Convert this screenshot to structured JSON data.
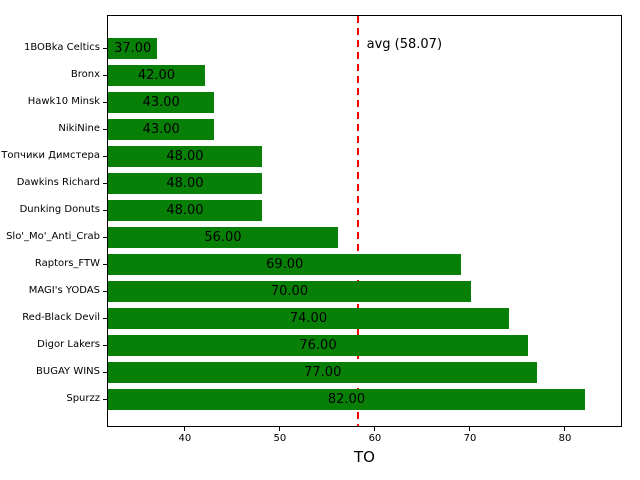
{
  "chart_data": {
    "type": "bar",
    "orientation": "horizontal",
    "title": "",
    "xlabel": "TO",
    "ylabel": "",
    "grid": false,
    "legend": null,
    "categories": [
      "1BOBka Celtics",
      "Bronx",
      "Hawk10 Minsk",
      "NikiNine",
      "Топчики Димстера",
      "Dawkins Richard",
      "Dunking Donuts",
      "Slo'_Mo'_Anti_Crab",
      "Raptors_FTW",
      "MAGI's YODAS",
      "Red-Black Devil",
      "Digor Lakers",
      "BUGAY WINS",
      "Spurzz"
    ],
    "values": [
      37,
      42,
      43,
      43,
      48,
      48,
      48,
      56,
      69,
      70,
      74,
      76,
      77,
      82
    ],
    "value_labels": [
      "37.00",
      "42.00",
      "43.00",
      "43.00",
      "48.00",
      "48.00",
      "48.00",
      "56.00",
      "69.00",
      "70.00",
      "74.00",
      "76.00",
      "77.00",
      "82.00"
    ],
    "x_ticks": [
      40,
      50,
      60,
      70,
      80
    ],
    "x_tick_labels": [
      "40",
      "50",
      "60",
      "70",
      "80"
    ],
    "xlim": [
      31.8,
      86.0
    ],
    "bar_color": "#088008",
    "avg_line": {
      "value": 58.07,
      "label": "avg (58.07)",
      "color": "#ff0000",
      "style": "dashed"
    }
  }
}
